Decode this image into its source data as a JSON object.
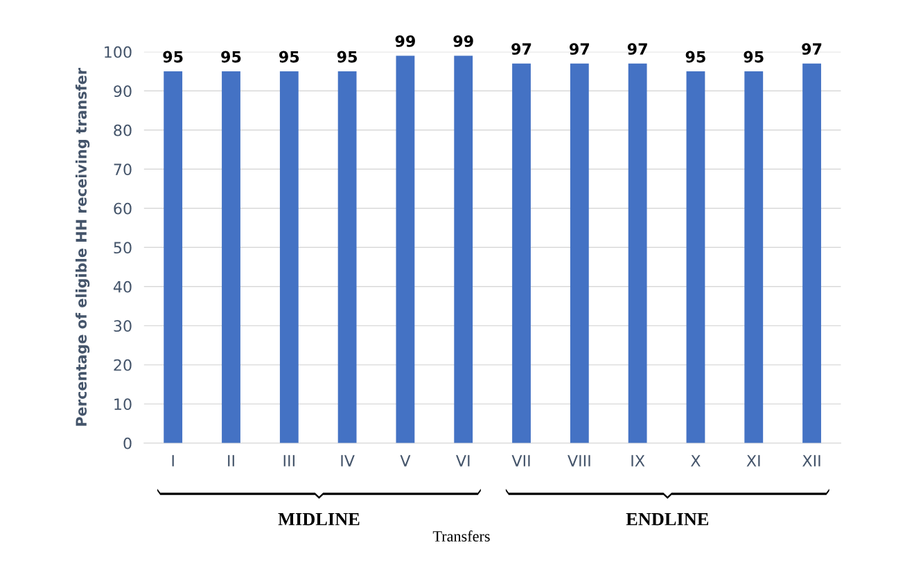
{
  "chart_data": {
    "type": "bar",
    "xlabel": "Transfers",
    "ylabel": "Percentage of eligible HH receiving transfer",
    "categories": [
      "I",
      "II",
      "III",
      "IV",
      "V",
      "VI",
      "VII",
      "VIII",
      "IX",
      "X",
      "XI",
      "XII"
    ],
    "values": [
      95,
      95,
      95,
      95,
      99,
      99,
      97,
      97,
      97,
      95,
      95,
      97
    ],
    "color": "#4472c4",
    "ylim": [
      0,
      100
    ],
    "yticks": [
      0,
      10,
      20,
      30,
      40,
      50,
      60,
      70,
      80,
      90,
      100
    ],
    "grid": "y",
    "data_labels": true,
    "annotations": [
      "MIDLINE",
      "ENDLINE"
    ]
  }
}
